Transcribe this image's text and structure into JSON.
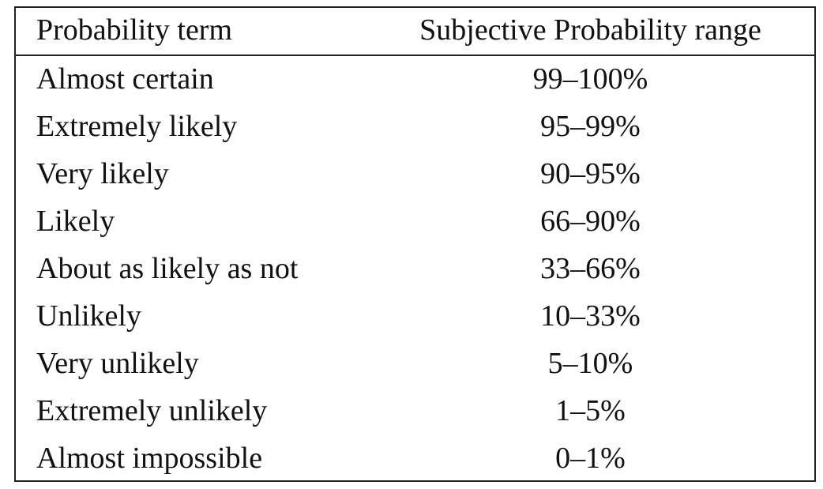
{
  "table": {
    "header": [
      "Probability term",
      "Subjective Probability range"
    ],
    "rows": [
      [
        "Almost certain",
        "99–100%"
      ],
      [
        "Extremely likely",
        "95–99%"
      ],
      [
        "Very likely",
        "90–95%"
      ],
      [
        "Likely",
        "66–90%"
      ],
      [
        "About as likely as not",
        "33–66%"
      ],
      [
        "Unlikely",
        "10–33%"
      ],
      [
        "Very unlikely",
        "5–10%"
      ],
      [
        "Extremely unlikely",
        "1–5%"
      ],
      [
        "Almost impossible",
        "0–1%"
      ]
    ]
  }
}
